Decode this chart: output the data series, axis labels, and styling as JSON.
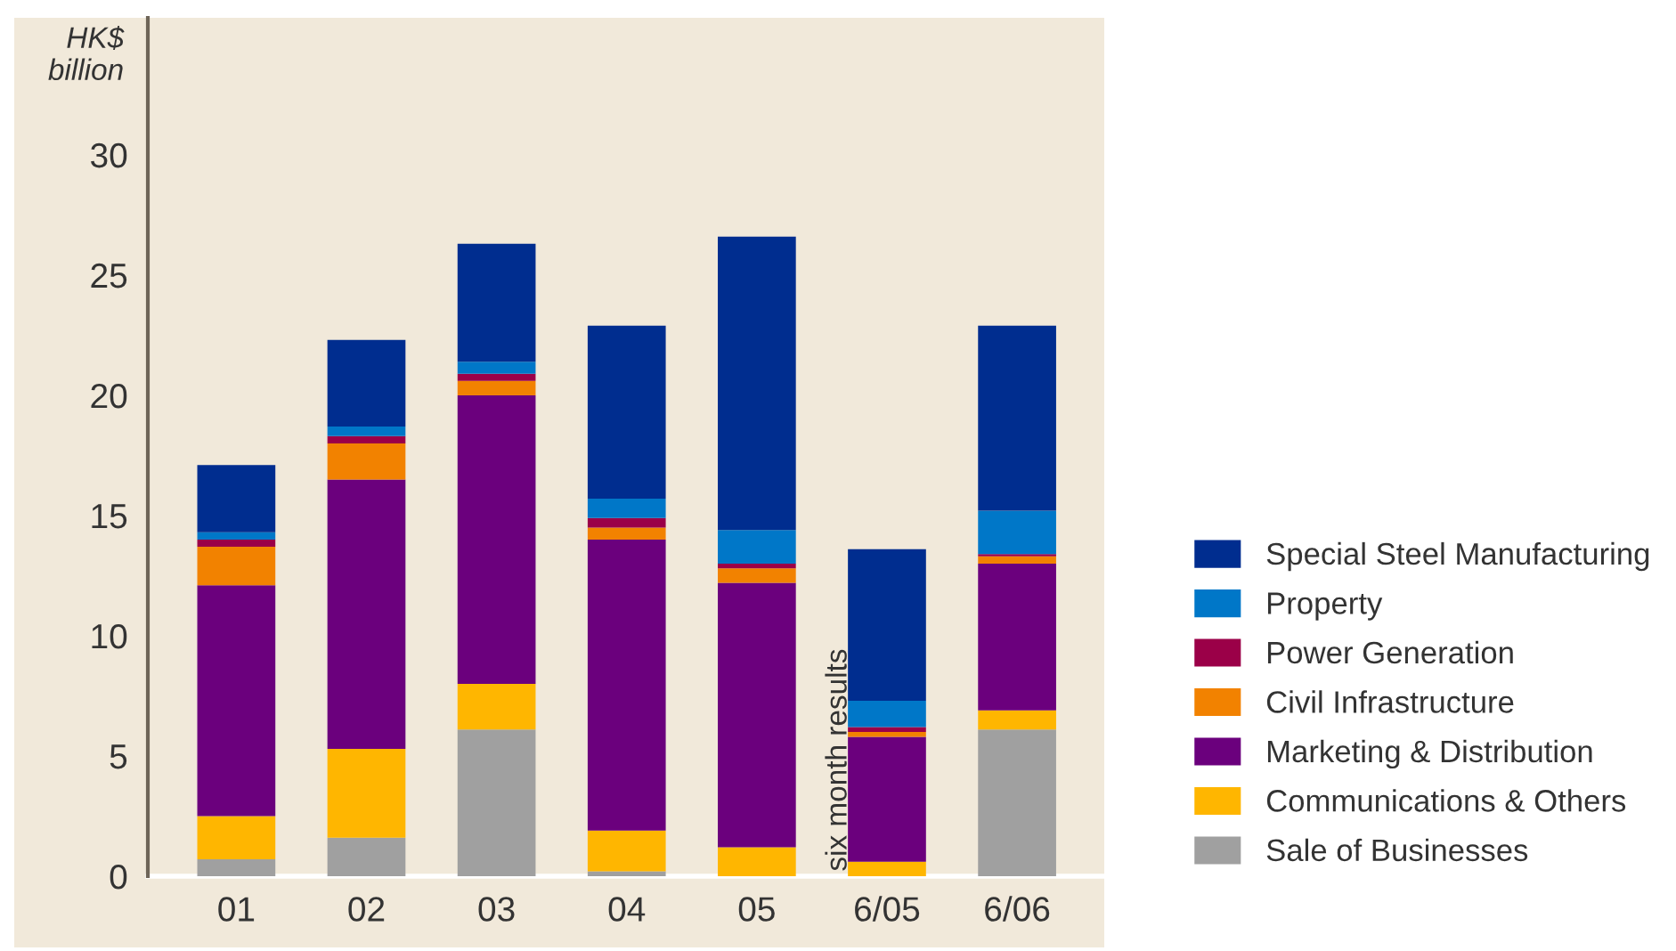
{
  "chart_data": {
    "type": "bar",
    "stacked": true,
    "ylabel": "HK$\nbillion",
    "categories": [
      "01",
      "02",
      "03",
      "04",
      "05",
      "6/05",
      "6/06"
    ],
    "series": [
      {
        "name": "Sale of Businesses",
        "color": "#a0a0a0",
        "values": [
          0.7,
          1.6,
          6.1,
          0.2,
          0,
          0,
          6.1
        ]
      },
      {
        "name": "Communications & Others",
        "color": "#ffb600",
        "values": [
          1.8,
          3.7,
          1.9,
          1.7,
          1.2,
          0.6,
          0.8
        ]
      },
      {
        "name": "Marketing & Distribution",
        "color": "#6b007d",
        "values": [
          9.6,
          11.2,
          12.0,
          12.1,
          11.0,
          5.2,
          6.1
        ]
      },
      {
        "name": "Civil Infrastructure",
        "color": "#f28200",
        "values": [
          1.6,
          1.5,
          0.6,
          0.5,
          0.6,
          0.2,
          0.3
        ]
      },
      {
        "name": "Power Generation",
        "color": "#9b0048",
        "values": [
          0.3,
          0.3,
          0.3,
          0.4,
          0.2,
          0.2,
          0.1
        ]
      },
      {
        "name": "Property",
        "color": "#0077c8",
        "values": [
          0.3,
          0.4,
          0.5,
          0.8,
          1.4,
          1.1,
          1.8
        ]
      },
      {
        "name": "Special Steel Manufacturing",
        "color": "#002d8f",
        "values": [
          2.8,
          3.6,
          4.9,
          7.2,
          12.2,
          6.3,
          7.7
        ]
      }
    ],
    "ylim": [
      0,
      35.7
    ],
    "yticks": [
      0,
      5,
      10,
      15,
      20,
      25,
      30
    ],
    "grid": false,
    "legend": "right",
    "annotations": [
      {
        "text": "six month results",
        "x": "6/05",
        "y": 0
      }
    ]
  }
}
